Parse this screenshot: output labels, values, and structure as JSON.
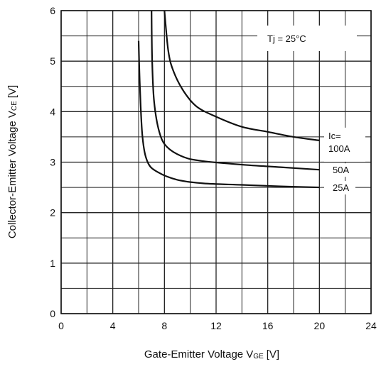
{
  "chart_data": {
    "type": "line",
    "title": "",
    "xlabel": "Gate-Emitter Voltage V",
    "xlabel_sub": "GE",
    "xlabel_unit": "[V]",
    "ylabel": "Collector-Emitter Voltage V",
    "ylabel_sub": "CE",
    "ylabel_unit": "[V]",
    "xlim": [
      0,
      24
    ],
    "ylim": [
      0,
      6
    ],
    "x_major_ticks": [
      0,
      4,
      8,
      12,
      16,
      20,
      24
    ],
    "y_major_ticks": [
      0,
      1,
      2,
      3,
      4,
      5,
      6
    ],
    "grid": true,
    "grid_step_x": 2,
    "grid_step_y": 0.5,
    "line_color": "#111111",
    "annotation": "Tj = 25°C",
    "series_label_header": "Ic=",
    "series": [
      {
        "name": "100A",
        "points": [
          [
            8.0,
            6.0
          ],
          [
            8.3,
            5.2
          ],
          [
            8.7,
            4.8
          ],
          [
            9.5,
            4.4
          ],
          [
            10.5,
            4.1
          ],
          [
            12.0,
            3.9
          ],
          [
            14.0,
            3.7
          ],
          [
            16.0,
            3.6
          ],
          [
            18.0,
            3.5
          ],
          [
            20.0,
            3.43
          ]
        ]
      },
      {
        "name": "50A",
        "points": [
          [
            7.0,
            6.0
          ],
          [
            7.05,
            5.0
          ],
          [
            7.2,
            4.2
          ],
          [
            7.6,
            3.6
          ],
          [
            8.2,
            3.3
          ],
          [
            9.5,
            3.1
          ],
          [
            11.0,
            3.02
          ],
          [
            14.0,
            2.95
          ],
          [
            17.0,
            2.9
          ],
          [
            20.0,
            2.85
          ]
        ]
      },
      {
        "name": "25A",
        "points": [
          [
            6.0,
            5.4
          ],
          [
            6.1,
            4.5
          ],
          [
            6.3,
            3.5
          ],
          [
            6.7,
            3.0
          ],
          [
            7.5,
            2.8
          ],
          [
            9.0,
            2.65
          ],
          [
            11.0,
            2.58
          ],
          [
            14.0,
            2.55
          ],
          [
            17.0,
            2.52
          ],
          [
            20.0,
            2.5
          ]
        ]
      }
    ]
  }
}
